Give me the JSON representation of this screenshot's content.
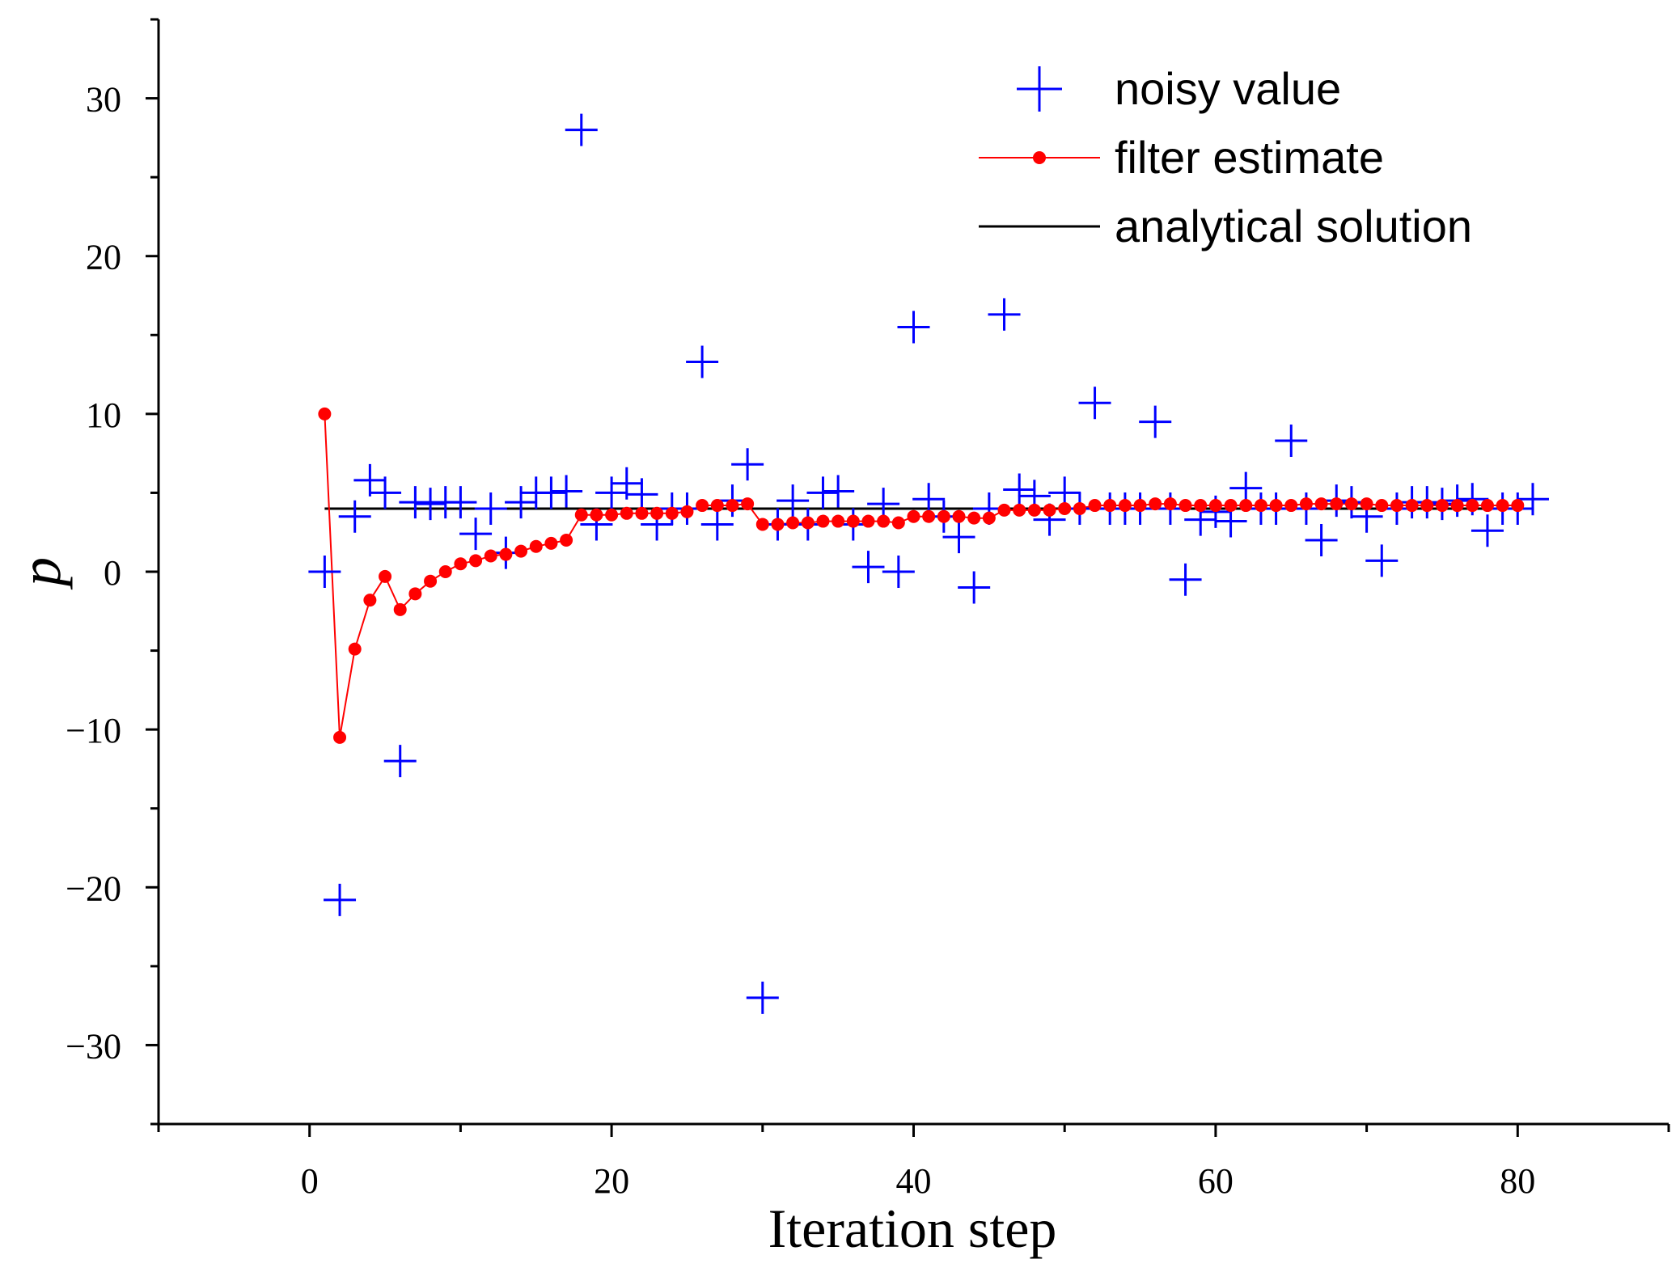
{
  "chart_data": {
    "type": "scatter",
    "title": "",
    "xlabel": "Iteration step",
    "ylabel": "p",
    "xlim": [
      -10,
      90
    ],
    "ylim": [
      -35,
      35
    ],
    "x_ticks": [
      0,
      20,
      40,
      60,
      80
    ],
    "x_tick_labels": [
      "0",
      "20",
      "40",
      "60",
      "80"
    ],
    "y_ticks": [
      -30,
      -20,
      -10,
      0,
      10,
      20,
      30
    ],
    "y_tick_labels": [
      "−30",
      "−20",
      "−10",
      "0",
      "10",
      "20",
      "30"
    ],
    "grid": false,
    "legend_position": "top-right",
    "series": [
      {
        "name": "noisy value",
        "kind": "marker-plus",
        "color": "#0000ff",
        "x": [
          1,
          2,
          3,
          4,
          5,
          6,
          7,
          8,
          9,
          10,
          11,
          12,
          13,
          14,
          15,
          16,
          17,
          18,
          19,
          20,
          21,
          22,
          23,
          24,
          25,
          26,
          27,
          28,
          29,
          30,
          31,
          32,
          33,
          34,
          35,
          36,
          37,
          38,
          39,
          40,
          41,
          42,
          43,
          44,
          45,
          46,
          47,
          48,
          49,
          50,
          51,
          52,
          53,
          54,
          55,
          56,
          57,
          58,
          59,
          60,
          61,
          62,
          63,
          64,
          65,
          66,
          67,
          68,
          69,
          70,
          71,
          72,
          73,
          74,
          75,
          76,
          77,
          78,
          79,
          80,
          81
        ],
        "y": [
          0,
          -20.8,
          3.5,
          5.8,
          5.0,
          -12.0,
          4.4,
          4.3,
          4.4,
          4.4,
          2.4,
          4.0,
          1.2,
          4.4,
          5.0,
          5.0,
          5.1,
          28.0,
          3.0,
          5.0,
          5.6,
          4.9,
          3.0,
          4.0,
          4.0,
          13.3,
          3.0,
          4.5,
          6.8,
          -27.0,
          3.0,
          4.5,
          3.0,
          5.0,
          5.1,
          3.0,
          0.3,
          4.3,
          0.0,
          15.5,
          4.6,
          3.5,
          2.2,
          -1.0,
          4.0,
          16.3,
          5.2,
          4.8,
          3.3,
          5.0,
          4.0,
          10.7,
          4.0,
          4.0,
          4.0,
          9.5,
          4.0,
          -0.5,
          3.3,
          3.8,
          3.2,
          5.3,
          4.0,
          4.0,
          8.3,
          4.0,
          2.0,
          4.5,
          4.4,
          3.5,
          0.7,
          4.0,
          4.4,
          4.4,
          4.3,
          4.5,
          4.6,
          2.6,
          4.0,
          4.0,
          4.6
        ]
      },
      {
        "name": "filter estimate",
        "kind": "line-dots",
        "color": "#ff0000",
        "x": [
          1,
          2,
          3,
          4,
          5,
          6,
          7,
          8,
          9,
          10,
          11,
          12,
          13,
          14,
          15,
          16,
          17,
          18,
          19,
          20,
          21,
          22,
          23,
          24,
          25,
          26,
          27,
          28,
          29,
          30,
          31,
          32,
          33,
          34,
          35,
          36,
          37,
          38,
          39,
          40,
          41,
          42,
          43,
          44,
          45,
          46,
          47,
          48,
          49,
          50,
          51,
          52,
          53,
          54,
          55,
          56,
          57,
          58,
          59,
          60,
          61,
          62,
          63,
          64,
          65,
          66,
          67,
          68,
          69,
          70,
          71,
          72,
          73,
          74,
          75,
          76,
          77,
          78,
          79,
          80
        ],
        "y": [
          10.0,
          -10.5,
          -4.9,
          -1.8,
          -0.3,
          -2.4,
          -1.4,
          -0.6,
          0.0,
          0.5,
          0.7,
          1.0,
          1.1,
          1.3,
          1.6,
          1.8,
          2.0,
          3.6,
          3.6,
          3.6,
          3.7,
          3.7,
          3.7,
          3.7,
          3.8,
          4.2,
          4.2,
          4.2,
          4.3,
          3.0,
          3.0,
          3.1,
          3.1,
          3.2,
          3.2,
          3.2,
          3.2,
          3.2,
          3.1,
          3.5,
          3.5,
          3.5,
          3.5,
          3.4,
          3.4,
          3.9,
          3.9,
          3.9,
          3.9,
          4.0,
          4.0,
          4.2,
          4.2,
          4.2,
          4.2,
          4.3,
          4.3,
          4.2,
          4.2,
          4.2,
          4.2,
          4.2,
          4.2,
          4.2,
          4.2,
          4.3,
          4.3,
          4.3,
          4.3,
          4.3,
          4.2,
          4.2,
          4.2,
          4.2,
          4.2,
          4.2,
          4.2,
          4.2,
          4.2,
          4.2
        ]
      },
      {
        "name": "analytical solution",
        "kind": "line",
        "color": "#000000",
        "x": [
          1,
          81
        ],
        "y": [
          4.0,
          4.0
        ]
      }
    ]
  }
}
